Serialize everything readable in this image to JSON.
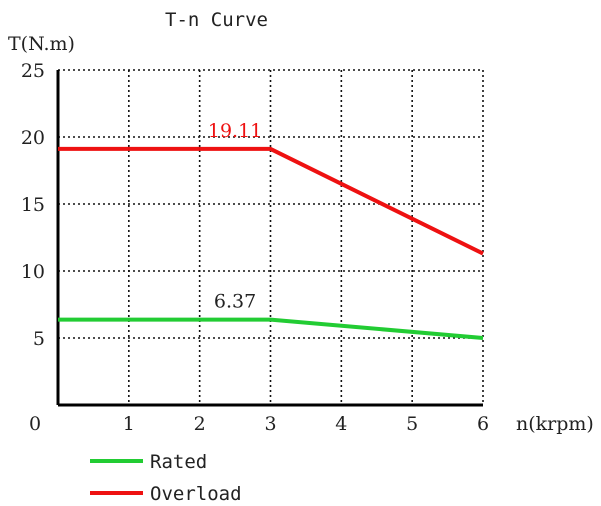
{
  "chart_data": {
    "type": "line",
    "title": "T-n Curve",
    "ylabel": "T(N.m)",
    "xlabel": "n(krpm)",
    "xlim": [
      0,
      6
    ],
    "ylim": [
      0,
      25
    ],
    "x_ticks": [
      0,
      1,
      2,
      3,
      4,
      5,
      6
    ],
    "y_ticks": [
      5,
      10,
      15,
      20,
      25
    ],
    "grid": true,
    "legend_position": "bottom-left",
    "series": [
      {
        "name": "Rated",
        "color": "#22cc33",
        "x": [
          0,
          3,
          6
        ],
        "y": [
          6.37,
          6.37,
          5.0
        ]
      },
      {
        "name": "Overload",
        "color": "#ee1111",
        "x": [
          0,
          3,
          6
        ],
        "y": [
          19.11,
          19.11,
          11.3
        ]
      }
    ],
    "annotations": [
      {
        "text": "19.11",
        "x": 2.5,
        "y": 19.11,
        "color": "#ee1111"
      },
      {
        "text": "6.37",
        "x": 2.5,
        "y": 6.37,
        "color": "#222222"
      }
    ]
  }
}
